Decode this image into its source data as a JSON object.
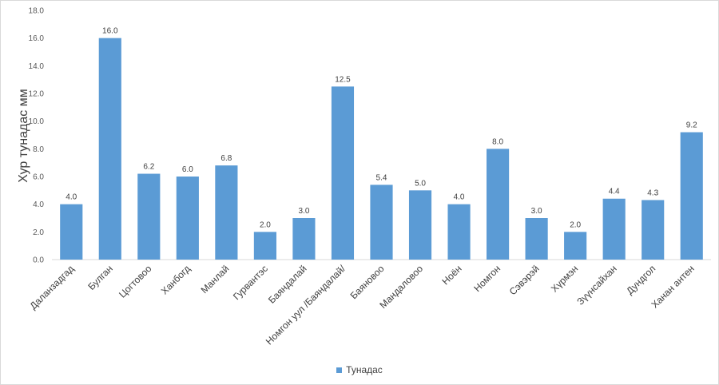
{
  "chart_data": {
    "type": "bar",
    "categories": [
      "Даланзадгад",
      "Булган",
      "Цогтовоо",
      "Ханбогд",
      "Манлай",
      "Гурвантэс",
      "Баяндалай",
      "Номгон уул /Баяндалай/",
      "Баяновоо",
      "Мандаловоо",
      "Ноён",
      "Номгон",
      "Сэвэрэй",
      "Хүрмэн",
      "Зүүнсайхан",
      "Дундгол",
      "Ханан антен"
    ],
    "series": [
      {
        "name": "Тунадас",
        "values": [
          4.0,
          16.0,
          6.2,
          6.0,
          6.8,
          2.0,
          3.0,
          12.5,
          5.4,
          5.0,
          4.0,
          8.0,
          3.0,
          2.0,
          4.4,
          4.3,
          9.2
        ]
      }
    ],
    "data_labels": [
      "4.0",
      "16.0",
      "6.2",
      "6.0",
      "6.8",
      "2.0",
      "3.0",
      "12.5",
      "5.4",
      "5.0",
      "4.0",
      "8.0",
      "3.0",
      "2.0",
      "4.4",
      "4.3",
      "9.2"
    ],
    "title": "",
    "xlabel": "",
    "ylabel": "Хур тунадас мм",
    "ylim": [
      0,
      18
    ],
    "yticks": [
      "0.0",
      "2.0",
      "4.0",
      "6.0",
      "8.0",
      "10.0",
      "12.0",
      "14.0",
      "16.0",
      "18.0"
    ],
    "grid": false,
    "legend_position": "bottom",
    "bar_color": "#5b9bd5",
    "axis_color": "#d9d9d9"
  }
}
